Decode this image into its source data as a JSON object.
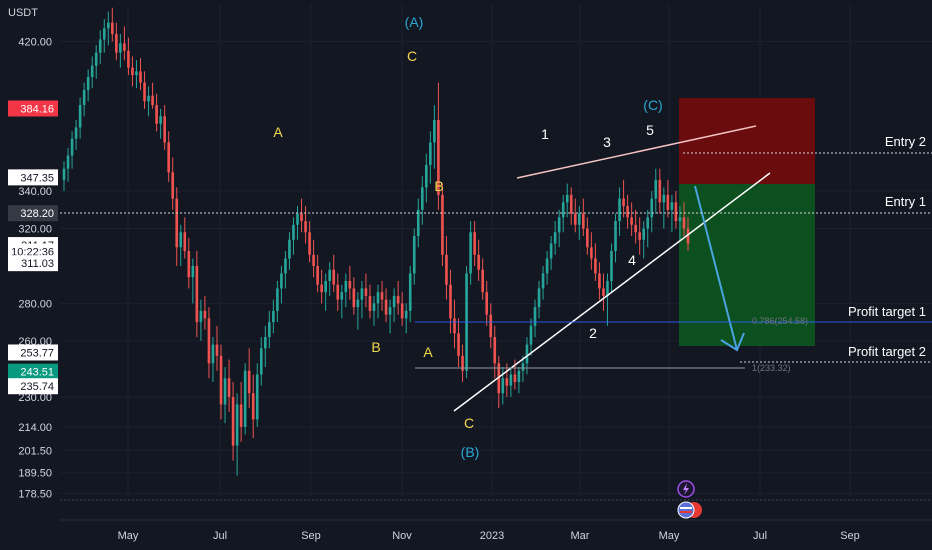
{
  "chart_data": {
    "type": "candlestick",
    "currency": "USDT",
    "x_ticks": [
      "May",
      "Jul",
      "Sep",
      "Nov",
      "2023",
      "Mar",
      "May",
      "Jul",
      "Sep"
    ],
    "y_ticks": [
      "420.00",
      "340.00",
      "320.00",
      "280.00",
      "260.00",
      "230.00",
      "214.00",
      "201.50",
      "189.50",
      "178.50"
    ],
    "y_range": [
      176,
      440
    ],
    "price_tags": [
      {
        "label": "384.16",
        "price": 384.16,
        "bg": "#f23645",
        "fg": "#ffffff"
      },
      {
        "label": "347.35",
        "price": 347.35,
        "bg": "#ffffff",
        "fg": "#131722"
      },
      {
        "label": "328.20",
        "price": 328.2,
        "bg": "#363a45",
        "fg": "#ffffff"
      },
      {
        "label": "311.17",
        "price": 311.17,
        "bg": "#ffffff",
        "fg": "#131722"
      },
      {
        "label": "10:22:36",
        "price": 307.6,
        "bg": "#ffffff",
        "fg": "#131722"
      },
      {
        "label": "311.03",
        "price": 301.5,
        "bg": "#ffffff",
        "fg": "#131722"
      },
      {
        "label": "253.77",
        "price": 253.77,
        "bg": "#ffffff",
        "fg": "#131722"
      },
      {
        "label": "243.51",
        "price": 243.51,
        "bg": "#089981",
        "fg": "#ffffff"
      },
      {
        "label": "235.74",
        "price": 235.74,
        "bg": "#ffffff",
        "fg": "#131722"
      }
    ],
    "wave_labels": [
      {
        "text": "(A)",
        "color": "#2aa9d6"
      },
      {
        "text": "C",
        "color": "#f5d94c"
      },
      {
        "text": "A",
        "color": "#f5d94c"
      },
      {
        "text": "B",
        "color": "#f5d94c"
      },
      {
        "text": "B",
        "color": "#f5d94c"
      },
      {
        "text": "A",
        "color": "#f5d94c"
      },
      {
        "text": "C",
        "color": "#f5d94c"
      },
      {
        "text": "(B)",
        "color": "#2aa9d6"
      },
      {
        "text": "1",
        "color": "#ffffff"
      },
      {
        "text": "2",
        "color": "#ffffff"
      },
      {
        "text": "3",
        "color": "#ffffff"
      },
      {
        "text": "4",
        "color": "#ffffff"
      },
      {
        "text": "5",
        "color": "#ffffff"
      },
      {
        "text": "(C)",
        "color": "#2aa9d6"
      }
    ],
    "levels": [
      {
        "label": "Entry 2",
        "price": 347.35
      },
      {
        "label": "Entry 1",
        "price": 311.17
      },
      {
        "label": "Profit target 1",
        "price": 253.77
      },
      {
        "label": "Profit target 2",
        "price": 235.74
      }
    ],
    "fib_labels": [
      "0.786(254.58)",
      "1(233.32)"
    ],
    "colors": {
      "up": "#26a69a",
      "down": "#ef5350",
      "stop_zone": "#7a0b0b",
      "target_zone": "#0d5a1f",
      "background": "#131722",
      "fib_line": "#2962ff"
    },
    "candles_ohlc": [
      [
        346,
        356,
        340,
        352
      ],
      [
        352,
        363,
        345,
        359
      ],
      [
        359,
        372,
        352,
        368
      ],
      [
        368,
        378,
        362,
        374
      ],
      [
        374,
        390,
        368,
        386
      ],
      [
        386,
        398,
        380,
        394
      ],
      [
        394,
        405,
        388,
        401
      ],
      [
        401,
        412,
        395,
        407
      ],
      [
        407,
        418,
        400,
        414
      ],
      [
        414,
        426,
        408,
        421
      ],
      [
        421,
        432,
        414,
        427
      ],
      [
        427,
        436,
        418,
        430
      ],
      [
        430,
        438,
        420,
        424
      ],
      [
        424,
        430,
        410,
        414
      ],
      [
        414,
        424,
        406,
        419
      ],
      [
        419,
        428,
        410,
        415
      ],
      [
        415,
        422,
        402,
        406
      ],
      [
        406,
        412,
        396,
        402
      ],
      [
        402,
        410,
        395,
        404
      ],
      [
        404,
        411,
        394,
        398
      ],
      [
        398,
        404,
        384,
        388
      ],
      [
        388,
        396,
        380,
        391
      ],
      [
        391,
        398,
        384,
        386
      ],
      [
        386,
        392,
        372,
        376
      ],
      [
        376,
        384,
        368,
        380
      ],
      [
        380,
        386,
        362,
        366
      ],
      [
        366,
        372,
        345,
        350
      ],
      [
        350,
        358,
        330,
        336
      ],
      [
        336,
        342,
        300,
        310
      ],
      [
        310,
        322,
        300,
        318
      ],
      [
        318,
        326,
        304,
        308
      ],
      [
        308,
        315,
        288,
        294
      ],
      [
        294,
        304,
        280,
        300
      ],
      [
        300,
        308,
        262,
        270
      ],
      [
        270,
        282,
        260,
        276
      ],
      [
        276,
        284,
        266,
        272
      ],
      [
        272,
        278,
        240,
        248
      ],
      [
        248,
        262,
        238,
        258
      ],
      [
        258,
        268,
        244,
        252
      ],
      [
        252,
        258,
        218,
        226
      ],
      [
        226,
        246,
        216,
        240
      ],
      [
        240,
        250,
        222,
        230
      ],
      [
        230,
        238,
        196,
        204
      ],
      [
        204,
        232,
        188,
        226
      ],
      [
        226,
        238,
        206,
        214
      ],
      [
        214,
        248,
        210,
        244
      ],
      [
        244,
        256,
        224,
        232
      ],
      [
        232,
        242,
        208,
        218
      ],
      [
        218,
        248,
        214,
        242
      ],
      [
        242,
        262,
        236,
        256
      ],
      [
        256,
        268,
        246,
        262
      ],
      [
        262,
        276,
        256,
        270
      ],
      [
        270,
        282,
        264,
        276
      ],
      [
        276,
        292,
        270,
        288
      ],
      [
        288,
        300,
        280,
        296
      ],
      [
        296,
        308,
        288,
        304
      ],
      [
        304,
        318,
        298,
        314
      ],
      [
        314,
        326,
        306,
        322
      ],
      [
        322,
        332,
        314,
        328
      ],
      [
        328,
        336,
        318,
        324
      ],
      [
        324,
        332,
        312,
        318
      ],
      [
        318,
        324,
        302,
        306
      ],
      [
        306,
        314,
        294,
        300
      ],
      [
        300,
        306,
        286,
        290
      ],
      [
        290,
        298,
        280,
        286
      ],
      [
        286,
        296,
        276,
        292
      ],
      [
        292,
        302,
        284,
        298
      ],
      [
        298,
        306,
        286,
        290
      ],
      [
        290,
        296,
        276,
        282
      ],
      [
        282,
        290,
        272,
        286
      ],
      [
        286,
        296,
        278,
        292
      ],
      [
        292,
        300,
        282,
        288
      ],
      [
        288,
        294,
        274,
        278
      ],
      [
        278,
        286,
        266,
        282
      ],
      [
        282,
        292,
        272,
        288
      ],
      [
        288,
        296,
        278,
        284
      ],
      [
        284,
        290,
        272,
        276
      ],
      [
        276,
        284,
        268,
        280
      ],
      [
        280,
        290,
        272,
        286
      ],
      [
        286,
        292,
        276,
        282
      ],
      [
        282,
        288,
        270,
        274
      ],
      [
        274,
        282,
        264,
        278
      ],
      [
        278,
        288,
        270,
        284
      ],
      [
        284,
        292,
        274,
        280
      ],
      [
        280,
        286,
        268,
        272
      ],
      [
        272,
        280,
        264,
        276
      ],
      [
        276,
        300,
        270,
        296
      ],
      [
        296,
        320,
        290,
        316
      ],
      [
        316,
        336,
        310,
        330
      ],
      [
        330,
        348,
        322,
        342
      ],
      [
        342,
        360,
        334,
        354
      ],
      [
        354,
        372,
        344,
        366
      ],
      [
        366,
        386,
        352,
        378
      ],
      [
        378,
        398,
        330,
        338
      ],
      [
        338,
        344,
        300,
        306
      ],
      [
        306,
        316,
        282,
        290
      ],
      [
        290,
        298,
        264,
        272
      ],
      [
        272,
        282,
        256,
        264
      ],
      [
        264,
        272,
        246,
        252
      ],
      [
        252,
        258,
        238,
        244
      ],
      [
        244,
        300,
        240,
        296
      ],
      [
        296,
        324,
        290,
        318
      ],
      [
        318,
        324,
        300,
        306
      ],
      [
        306,
        314,
        292,
        298
      ],
      [
        298,
        304,
        282,
        286
      ],
      [
        286,
        292,
        268,
        274
      ],
      [
        274,
        280,
        256,
        262
      ],
      [
        262,
        268,
        240,
        248
      ],
      [
        248,
        252,
        224,
        232
      ],
      [
        232,
        246,
        226,
        240
      ],
      [
        240,
        248,
        230,
        236
      ],
      [
        236,
        246,
        230,
        242
      ],
      [
        242,
        250,
        234,
        238
      ],
      [
        238,
        246,
        232,
        244
      ],
      [
        244,
        252,
        238,
        248
      ],
      [
        248,
        262,
        242,
        258
      ],
      [
        258,
        272,
        252,
        268
      ],
      [
        268,
        282,
        262,
        278
      ],
      [
        278,
        292,
        272,
        288
      ],
      [
        288,
        300,
        282,
        296
      ],
      [
        296,
        308,
        290,
        304
      ],
      [
        304,
        316,
        298,
        312
      ],
      [
        312,
        324,
        306,
        318
      ],
      [
        318,
        330,
        310,
        326
      ],
      [
        326,
        338,
        318,
        334
      ],
      [
        334,
        344,
        326,
        338
      ],
      [
        338,
        342,
        322,
        328
      ],
      [
        328,
        336,
        318,
        322
      ],
      [
        322,
        332,
        314,
        328
      ],
      [
        328,
        336,
        316,
        320
      ],
      [
        320,
        326,
        306,
        310
      ],
      [
        310,
        318,
        298,
        304
      ],
      [
        304,
        312,
        292,
        296
      ],
      [
        296,
        302,
        282,
        288
      ],
      [
        288,
        296,
        276,
        284
      ],
      [
        284,
        296,
        268,
        292
      ],
      [
        292,
        312,
        286,
        308
      ],
      [
        308,
        328,
        302,
        324
      ],
      [
        324,
        342,
        316,
        336
      ],
      [
        336,
        346,
        326,
        332
      ],
      [
        332,
        338,
        320,
        326
      ],
      [
        326,
        334,
        316,
        322
      ],
      [
        322,
        330,
        312,
        318
      ],
      [
        318,
        326,
        306,
        314
      ],
      [
        314,
        324,
        304,
        320
      ],
      [
        320,
        330,
        310,
        326
      ],
      [
        326,
        340,
        318,
        336
      ],
      [
        336,
        352,
        328,
        346
      ],
      [
        346,
        352,
        328,
        334
      ],
      [
        334,
        342,
        320,
        338
      ],
      [
        338,
        346,
        326,
        330
      ],
      [
        330,
        338,
        318,
        334
      ],
      [
        334,
        340,
        320,
        324
      ],
      [
        324,
        332,
        314,
        326
      ],
      [
        326,
        334,
        316,
        320
      ],
      [
        320,
        326,
        308,
        312
      ]
    ]
  }
}
